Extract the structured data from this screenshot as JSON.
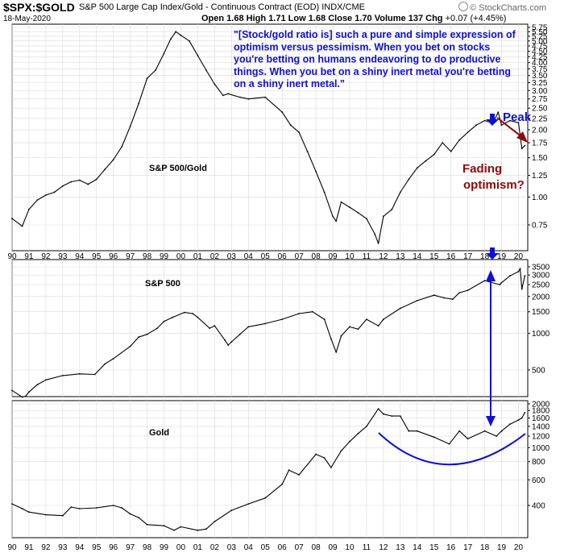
{
  "header": {
    "symbol": "$SPX:$GOLD",
    "description": "S&P 500 Large Cap Index/Gold - Continuous Contract (EOD) INDX/CME",
    "date": "18-May-2020",
    "open_label": "Open",
    "open": "1.68",
    "high_label": "High",
    "high": "1.71",
    "low_label": "Low",
    "low": "1.68",
    "close_label": "Close",
    "close": "1.70",
    "volume_label": "Volume",
    "volume": "137",
    "chg_label": "Chg",
    "chg": "+0.07 (+4.45%)",
    "brand": "© StockCharts.com"
  },
  "annotations": {
    "quote_lines": [
      "\"[Stock/gold ratio is] such a pure and simple expression of",
      "optimism versus pessimism. When you bet on stocks",
      "you're betting on humans endeavoring to do productive",
      "things. When you bet on a shiny inert metal you're betting",
      "on a shiny inert metal.\""
    ],
    "peak": "Peak",
    "fading_line1": "Fading",
    "fading_line2": "optimism?"
  },
  "colors": {
    "line": "#000000",
    "blue": "#1010d0",
    "dark_red": "#8b0a0a",
    "grid": "#d9d9d9"
  },
  "chart_data": [
    {
      "type": "line",
      "label": "S&P 500/Gold",
      "scale": "log",
      "ylim": [
        0.6,
        5.75
      ],
      "yticks": [
        "0.75",
        "1.00",
        "1.25",
        "1.50",
        "1.75",
        "2.00",
        "2.25",
        "2.50",
        "2.75",
        "3.00",
        "3.25",
        "3.50",
        "3.75",
        "4.00",
        "4.25",
        "4.50",
        "4.75",
        "5.00",
        "5.25",
        "5.50",
        "5.75"
      ],
      "x": [
        1990.0,
        1990.6,
        1991.0,
        1991.5,
        1992.0,
        1992.5,
        1993.0,
        1993.5,
        1994.0,
        1994.5,
        1995.0,
        1995.5,
        1996.0,
        1996.5,
        1997.0,
        1997.5,
        1998.0,
        1998.5,
        1999.0,
        1999.4,
        1999.7,
        2000.0,
        2000.5,
        2001.0,
        2001.5,
        2002.0,
        2002.5,
        2002.8,
        2003.5,
        2004.0,
        2005.0,
        2006.0,
        2006.5,
        2007.0,
        2007.5,
        2008.0,
        2008.5,
        2009.0,
        2009.2,
        2009.5,
        2010.0,
        2010.5,
        2011.0,
        2011.5,
        2011.7,
        2012.0,
        2012.5,
        2013.0,
        2013.5,
        2014.0,
        2014.5,
        2015.0,
        2015.5,
        2016.0,
        2016.5,
        2017.0,
        2017.5,
        2018.0,
        2018.5,
        2018.8,
        2019.0,
        2019.5,
        2020.0,
        2020.2,
        2020.38
      ],
      "values": [
        0.8,
        0.74,
        0.88,
        0.97,
        1.02,
        1.05,
        1.12,
        1.17,
        1.19,
        1.14,
        1.2,
        1.33,
        1.47,
        1.68,
        2.07,
        2.62,
        3.4,
        3.7,
        4.4,
        5.1,
        5.5,
        5.3,
        5.0,
        4.3,
        3.7,
        3.2,
        2.85,
        2.9,
        2.8,
        2.75,
        2.8,
        2.4,
        2.1,
        1.95,
        1.6,
        1.3,
        1.05,
        0.82,
        0.78,
        0.95,
        0.9,
        0.85,
        0.8,
        0.68,
        0.62,
        0.82,
        0.88,
        1.05,
        1.2,
        1.35,
        1.45,
        1.55,
        1.75,
        1.6,
        1.8,
        1.95,
        2.1,
        2.2,
        2.15,
        2.4,
        2.1,
        2.2,
        2.15,
        1.65,
        1.7
      ]
    },
    {
      "type": "line",
      "label": "S&P 500",
      "scale": "log",
      "ylim": [
        270,
        3500
      ],
      "yticks": [
        "500",
        "1000",
        "1500",
        "2000",
        "2500",
        "3000",
        "3500"
      ],
      "x": [
        1990.0,
        1990.6,
        1990.8,
        1991.0,
        1991.5,
        1992.0,
        1993.0,
        1994.0,
        1994.9,
        1995.5,
        1996.0,
        1997.0,
        1997.5,
        1998.0,
        1998.6,
        1999.0,
        1999.5,
        2000.2,
        2000.7,
        2001.0,
        2001.7,
        2002.0,
        2002.6,
        2002.8,
        2003.0,
        2003.5,
        2004.0,
        2005.0,
        2006.0,
        2007.0,
        2007.8,
        2008.5,
        2008.9,
        2009.2,
        2009.5,
        2010.0,
        2010.5,
        2011.0,
        2011.7,
        2012.0,
        2013.0,
        2014.0,
        2015.0,
        2015.6,
        2016.1,
        2016.5,
        2017.0,
        2018.0,
        2018.9,
        2019.0,
        2019.5,
        2020.0,
        2020.1,
        2020.2,
        2020.38
      ],
      "values": [
        340,
        300,
        305,
        330,
        380,
        415,
        450,
        465,
        460,
        560,
        620,
        780,
        930,
        980,
        1100,
        1250,
        1350,
        1480,
        1450,
        1350,
        1100,
        1150,
        880,
        800,
        850,
        980,
        1130,
        1200,
        1300,
        1450,
        1500,
        1300,
        900,
        700,
        950,
        1130,
        1080,
        1300,
        1150,
        1300,
        1600,
        1850,
        2050,
        1950,
        1900,
        2150,
        2250,
        2700,
        2500,
        2600,
        2950,
        3200,
        3380,
        2300,
        2950
      ]
    },
    {
      "type": "line",
      "label": "Gold",
      "scale": "log",
      "ylim": [
        250,
        2000
      ],
      "yticks": [
        "400",
        "600",
        "800",
        "1000",
        "1200",
        "1400",
        "1600",
        "1800",
        "2000"
      ],
      "x": [
        1990.0,
        1990.6,
        1991.0,
        1992.0,
        1993.0,
        1993.5,
        1994.0,
        1995.0,
        1996.0,
        1996.5,
        1997.0,
        1997.5,
        1998.0,
        1999.0,
        1999.6,
        2000.0,
        2001.0,
        2001.5,
        2002.0,
        2003.0,
        2004.0,
        2005.0,
        2006.0,
        2006.4,
        2007.0,
        2008.0,
        2008.5,
        2008.9,
        2009.5,
        2010.0,
        2010.5,
        2011.0,
        2011.7,
        2012.0,
        2012.5,
        2013.0,
        2013.5,
        2014.0,
        2015.0,
        2015.9,
        2016.5,
        2017.0,
        2018.0,
        2018.7,
        2019.0,
        2019.5,
        2020.0,
        2020.2,
        2020.38
      ],
      "values": [
        410,
        380,
        360,
        345,
        340,
        390,
        380,
        385,
        400,
        385,
        350,
        330,
        295,
        290,
        270,
        285,
        270,
        275,
        310,
        370,
        410,
        450,
        560,
        700,
        650,
        900,
        850,
        730,
        950,
        1100,
        1250,
        1400,
        1850,
        1700,
        1650,
        1650,
        1300,
        1300,
        1180,
        1060,
        1300,
        1150,
        1300,
        1200,
        1300,
        1450,
        1550,
        1600,
        1740
      ]
    }
  ],
  "x_axis": {
    "labels": [
      "90",
      "91",
      "92",
      "93",
      "94",
      "95",
      "96",
      "97",
      "98",
      "99",
      "00",
      "01",
      "02",
      "03",
      "04",
      "05",
      "06",
      "07",
      "08",
      "09",
      "10",
      "11",
      "12",
      "13",
      "14",
      "15",
      "16",
      "17",
      "18",
      "19",
      "20"
    ]
  }
}
